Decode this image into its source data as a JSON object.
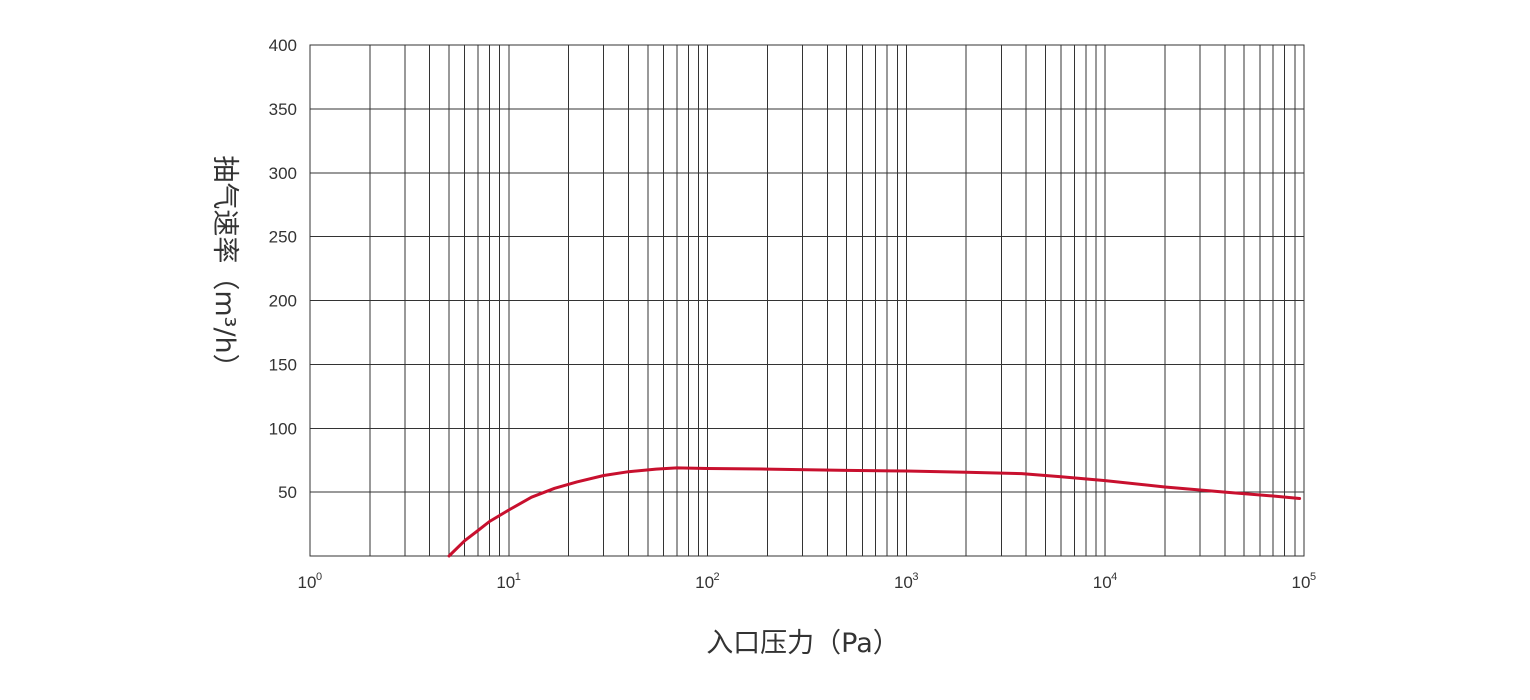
{
  "chart_data": {
    "type": "line",
    "xlabel": "入口压力（Pa）",
    "ylabel": "抽气速率（m³/h）",
    "x_scale": "log",
    "xlim": [
      1,
      100000
    ],
    "ylim": [
      0,
      400
    ],
    "grid": true,
    "x_ticks": [
      {
        "base": "10",
        "exp": "0"
      },
      {
        "base": "10",
        "exp": "1"
      },
      {
        "base": "10",
        "exp": "2"
      },
      {
        "base": "10",
        "exp": "3"
      },
      {
        "base": "10",
        "exp": "4"
      },
      {
        "base": "10",
        "exp": "5"
      }
    ],
    "y_ticks": [
      "50",
      "100",
      "150",
      "200",
      "250",
      "300",
      "350",
      "400"
    ],
    "y_tick_values": [
      50,
      100,
      150,
      200,
      250,
      300,
      350,
      400
    ],
    "colors": {
      "curve": "#c8102e",
      "grid": "#333333"
    },
    "series": [
      {
        "x": [
          5,
          6,
          7,
          8,
          10,
          13,
          17,
          22,
          30,
          40,
          55,
          70,
          100,
          200,
          500,
          1000,
          2000,
          3800,
          6000,
          10000,
          20000,
          40000,
          70000,
          95000
        ],
        "y": [
          0,
          12,
          20,
          27,
          36,
          46,
          53,
          58,
          63,
          66,
          68,
          69,
          68.5,
          68,
          67,
          66.5,
          65.5,
          64.5,
          62,
          59,
          54,
          50,
          47,
          45
        ]
      }
    ]
  }
}
